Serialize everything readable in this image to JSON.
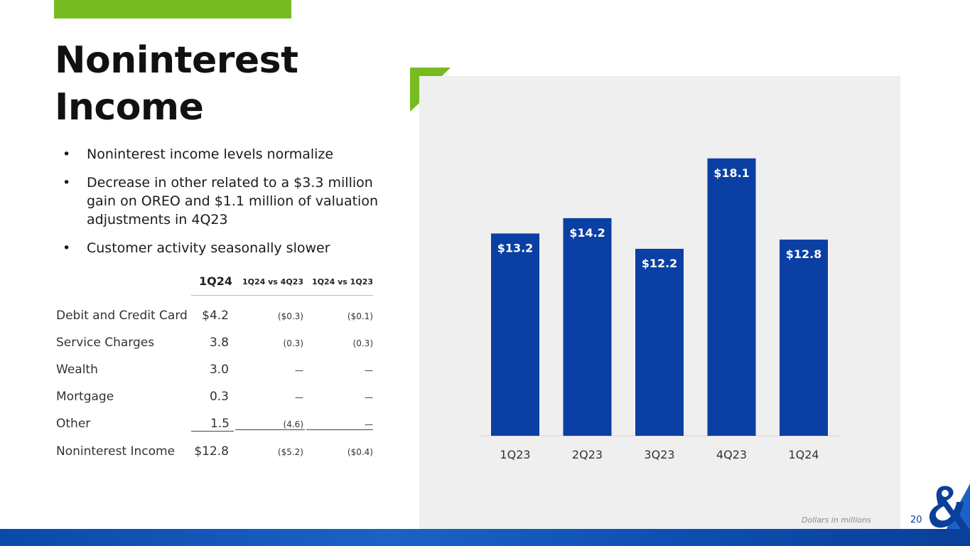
{
  "slide": {
    "title_line1": "Noninterest",
    "title_line2": "Income",
    "bullets": [
      "Noninterest income levels normalize",
      "Decrease in other related to a $3.3 million gain on OREO and $1.1 million of valuation adjustments in 4Q23",
      "Customer activity seasonally slower"
    ],
    "bullet_glyph": "•",
    "footnote": "Dollars in millions",
    "page_number": "20"
  },
  "table": {
    "headers": [
      "1Q24",
      "1Q24 vs 4Q23",
      "1Q24 vs 1Q23"
    ],
    "rows": [
      {
        "label": "Debit and Credit Card",
        "v1": "$4.2",
        "v2": "($0.3)",
        "v3": "($0.1)"
      },
      {
        "label": "Service Charges",
        "v1": "3.8",
        "v2": "(0.3)",
        "v3": "(0.3)"
      },
      {
        "label": "Wealth",
        "v1": "3.0",
        "v2": "—",
        "v3": "—"
      },
      {
        "label": "Mortgage",
        "v1": "0.3",
        "v2": "—",
        "v3": "—"
      },
      {
        "label": "Other",
        "v1": "1.5",
        "v2": "(4.6)",
        "v3": "—"
      },
      {
        "label": "Noninterest Income",
        "v1": "$12.8",
        "v2": "($5.2)",
        "v3": "($0.4)"
      }
    ]
  },
  "chart_data": {
    "type": "bar",
    "categories": [
      "1Q23",
      "2Q23",
      "3Q23",
      "4Q23",
      "1Q24"
    ],
    "values": [
      13.2,
      14.2,
      12.2,
      18.1,
      12.8
    ],
    "data_labels": [
      "$13.2",
      "$14.2",
      "$12.2",
      "$18.1",
      "$12.8"
    ],
    "ylim": [
      0,
      18.6
    ],
    "grid": false,
    "legend": "none",
    "title": "",
    "xlabel": "",
    "ylabel": ""
  },
  "colors": {
    "bar": "#0a3fa3",
    "accent_green": "#76bc21",
    "panel": "#efefef"
  },
  "icons": {
    "logo": "ampersand-logo-icon",
    "corner": "corner-bracket-icon"
  }
}
